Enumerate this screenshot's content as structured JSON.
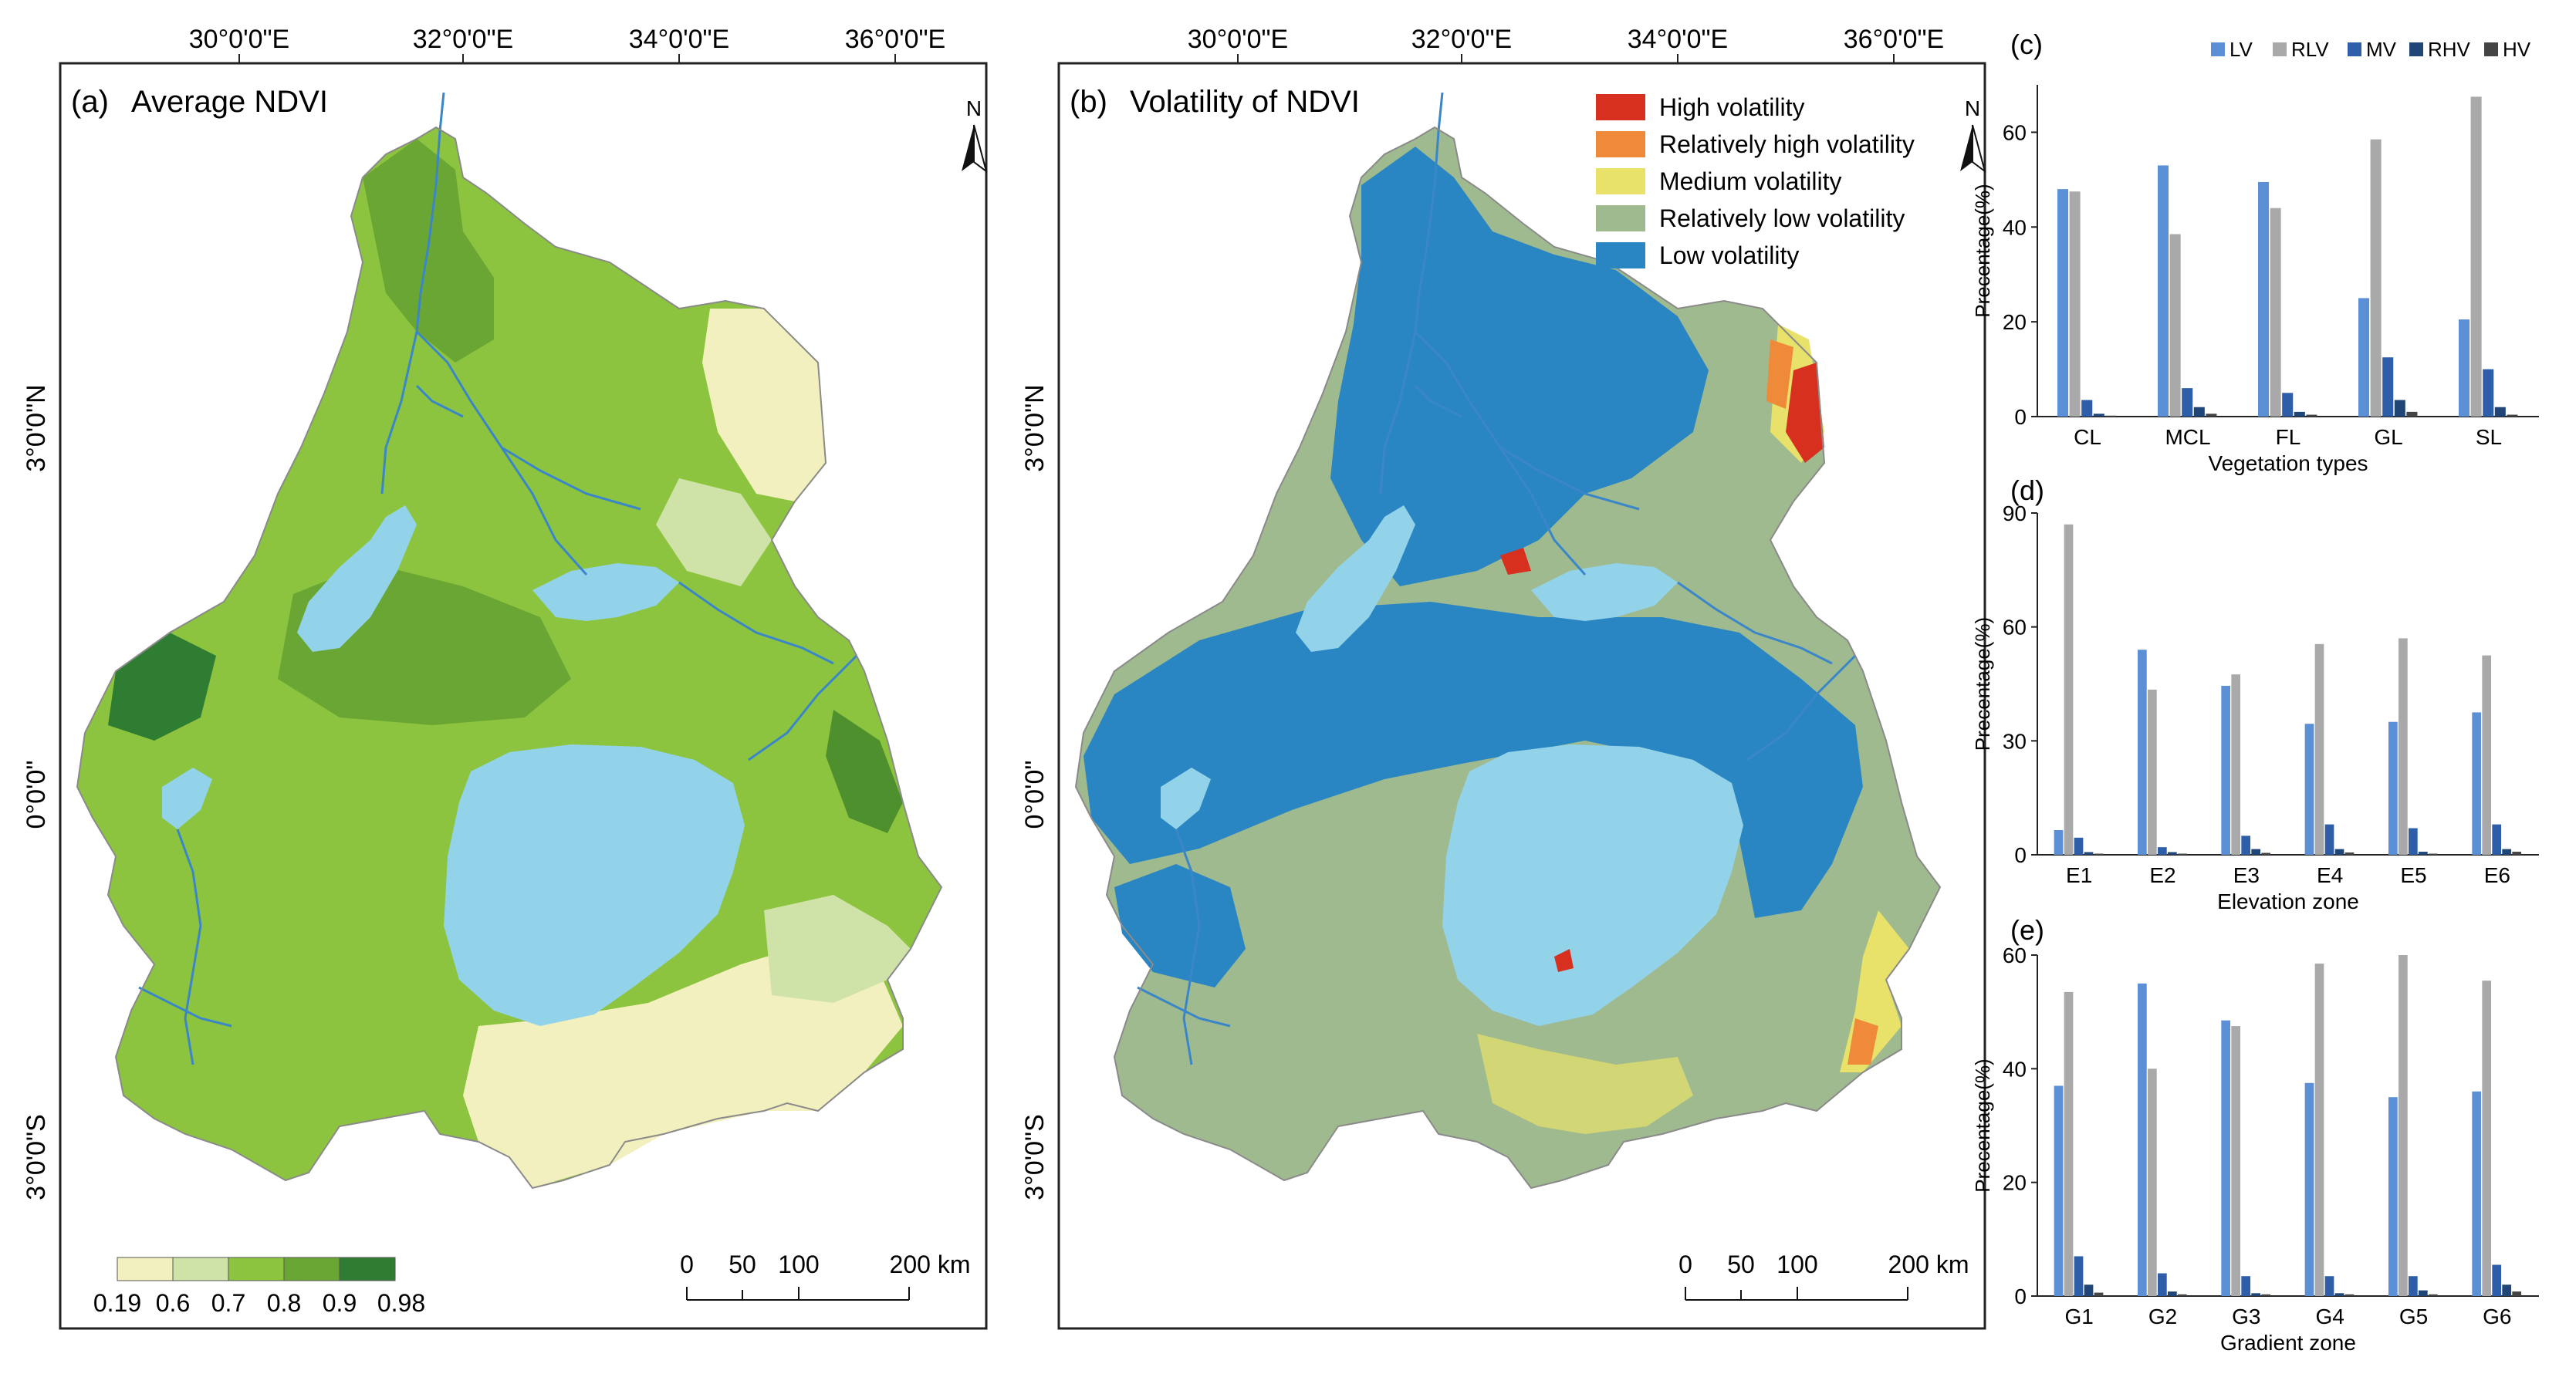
{
  "colors": {
    "ndvi_classes": [
      "#f3f0bf",
      "#cfe3a9",
      "#8cc43f",
      "#6aa633",
      "#2e7d32"
    ],
    "volatility_classes": [
      "#d7301f",
      "#ef8a3a",
      "#e8e26a",
      "#9fba8f",
      "#2a86c2"
    ],
    "lake": "#93d3ea",
    "river": "#3a86c8",
    "series": [
      "#5b8fd6",
      "#a9a9a9",
      "#2f5ea8",
      "#1f4677",
      "#444444"
    ]
  },
  "panel_a": {
    "label": "(a)",
    "title": "Average NDVI",
    "legend_ticks": [
      "0.19",
      "0.6",
      "0.7",
      "0.8",
      "0.9",
      "0.98"
    ]
  },
  "panel_b": {
    "label": "(b)",
    "title": "Volatility of NDVI",
    "legend": [
      "High volatility",
      "Relatively high volatility",
      "Medium volatility",
      "Relatively low volatility",
      "Low volatility"
    ]
  },
  "map_axes": {
    "lon_ticks": [
      "30°0'0\"E",
      "32°0'0\"E",
      "34°0'0\"E",
      "36°0'0\"E"
    ],
    "lat_ticks": [
      "3°0'0\"N",
      "0°0'0\"",
      "3°0'0\"S"
    ],
    "north_label": "N",
    "scale_ticks": [
      "0",
      "50",
      "100",
      "200 km"
    ]
  },
  "chart_data": [
    {
      "panel": "(c)",
      "type": "bar",
      "categories": [
        "CL",
        "MCL",
        "FL",
        "GL",
        "SL"
      ],
      "series": [
        {
          "name": "LV",
          "values": [
            48,
            53,
            49.5,
            25,
            20.5
          ]
        },
        {
          "name": "RLV",
          "values": [
            47.5,
            38.5,
            44,
            58.5,
            67.5
          ]
        },
        {
          "name": "MV",
          "values": [
            3.5,
            6,
            5,
            12.5,
            10
          ]
        },
        {
          "name": "RHV",
          "values": [
            0.6,
            2,
            1,
            3.5,
            2
          ]
        },
        {
          "name": "HV",
          "values": [
            0.2,
            0.6,
            0.4,
            1,
            0.4
          ]
        }
      ],
      "xlabel": "Vegetation types",
      "ylabel": "Precentage(%)",
      "ylim": [
        0,
        70
      ],
      "yticks": [
        "0",
        "20",
        "40",
        "60"
      ],
      "legend": "top"
    },
    {
      "panel": "(d)",
      "type": "bar",
      "categories": [
        "E1",
        "E2",
        "E3",
        "E4",
        "E5",
        "E6"
      ],
      "series": [
        {
          "name": "LV",
          "values": [
            6.5,
            54,
            44.5,
            34.5,
            35,
            37.5
          ]
        },
        {
          "name": "RLV",
          "values": [
            87,
            43.5,
            47.5,
            55.5,
            57,
            52.5
          ]
        },
        {
          "name": "MV",
          "values": [
            4.5,
            2,
            5,
            8,
            7,
            8
          ]
        },
        {
          "name": "RHV",
          "values": [
            0.7,
            0.7,
            1.5,
            1.5,
            0.8,
            1.5
          ]
        },
        {
          "name": "HV",
          "values": [
            0.3,
            0.3,
            0.5,
            0.6,
            0.3,
            0.8
          ]
        }
      ],
      "xlabel": "Elevation zone",
      "ylabel": "Precentage(%)",
      "ylim": [
        0,
        90
      ],
      "yticks": [
        "0",
        "30",
        "60",
        "90"
      ]
    },
    {
      "panel": "(e)",
      "type": "bar",
      "categories": [
        "G1",
        "G2",
        "G3",
        "G4",
        "G5",
        "G6"
      ],
      "series": [
        {
          "name": "LV",
          "values": [
            37,
            55,
            48.5,
            37.5,
            35,
            36
          ]
        },
        {
          "name": "RLV",
          "values": [
            53.5,
            40,
            47.5,
            58.5,
            60,
            55.5
          ]
        },
        {
          "name": "MV",
          "values": [
            7,
            4,
            3.5,
            3.5,
            3.5,
            5.5
          ]
        },
        {
          "name": "RHV",
          "values": [
            2,
            0.8,
            0.5,
            0.5,
            1,
            2
          ]
        },
        {
          "name": "HV",
          "values": [
            0.6,
            0.3,
            0.3,
            0.3,
            0.3,
            0.8
          ]
        }
      ],
      "xlabel": "Gradient zone",
      "ylabel": "Precentage(%)",
      "ylim": [
        0,
        60
      ],
      "yticks": [
        "0",
        "20",
        "40",
        "60"
      ]
    }
  ]
}
